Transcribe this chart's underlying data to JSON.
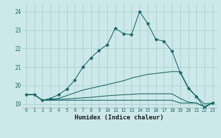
{
  "xlabel": "Humidex (Indice chaleur)",
  "xlim": [
    -0.5,
    23.5
  ],
  "ylim": [
    18.8,
    24.4
  ],
  "yticks": [
    19,
    20,
    21,
    22,
    23,
    24
  ],
  "xticks": [
    0,
    1,
    2,
    3,
    4,
    5,
    6,
    7,
    8,
    9,
    10,
    11,
    12,
    13,
    14,
    15,
    16,
    17,
    18,
    19,
    20,
    21,
    22,
    23
  ],
  "bg_color": "#cce8e8",
  "line_color": "#1a6b6b",
  "grid_color": "#aad0d0",
  "lines": [
    {
      "x": [
        0,
        1,
        2,
        3,
        4,
        5,
        6,
        7,
        8,
        9,
        10,
        11,
        12,
        13,
        14,
        15,
        16,
        17,
        18,
        19,
        20,
        21,
        22,
        23
      ],
      "y": [
        19.5,
        19.5,
        19.2,
        19.3,
        19.5,
        19.8,
        20.3,
        21.0,
        21.5,
        21.9,
        22.2,
        23.1,
        22.8,
        22.75,
        24.0,
        23.35,
        22.5,
        22.4,
        21.85,
        20.7,
        19.85,
        19.4,
        18.8,
        19.05
      ],
      "marker": true
    },
    {
      "x": [
        0,
        1,
        2,
        3,
        4,
        5,
        6,
        7,
        8,
        9,
        10,
        11,
        12,
        13,
        14,
        15,
        16,
        17,
        18,
        19,
        20,
        21,
        22,
        23
      ],
      "y": [
        19.5,
        19.5,
        19.2,
        19.25,
        19.3,
        19.45,
        19.6,
        19.75,
        19.85,
        19.95,
        20.05,
        20.15,
        20.25,
        20.4,
        20.5,
        20.6,
        20.65,
        20.7,
        20.75,
        20.75,
        19.9,
        19.4,
        19.0,
        19.05
      ],
      "marker": false
    },
    {
      "x": [
        0,
        1,
        2,
        3,
        4,
        5,
        6,
        7,
        8,
        9,
        10,
        11,
        12,
        13,
        14,
        15,
        16,
        17,
        18,
        19,
        20,
        21,
        22,
        23
      ],
      "y": [
        19.5,
        19.5,
        19.2,
        19.22,
        19.25,
        19.27,
        19.3,
        19.33,
        19.36,
        19.4,
        19.44,
        19.47,
        19.5,
        19.52,
        19.55,
        19.55,
        19.55,
        19.55,
        19.55,
        19.3,
        19.1,
        19.05,
        18.85,
        19.05
      ],
      "marker": false
    },
    {
      "x": [
        0,
        1,
        2,
        3,
        4,
        5,
        6,
        7,
        8,
        9,
        10,
        11,
        12,
        13,
        14,
        15,
        16,
        17,
        18,
        19,
        20,
        21,
        22,
        23
      ],
      "y": [
        19.5,
        19.5,
        19.2,
        19.2,
        19.2,
        19.2,
        19.2,
        19.2,
        19.2,
        19.2,
        19.2,
        19.2,
        19.2,
        19.2,
        19.2,
        19.2,
        19.2,
        19.2,
        19.2,
        19.05,
        19.05,
        19.05,
        18.85,
        19.05
      ],
      "marker": false
    }
  ]
}
